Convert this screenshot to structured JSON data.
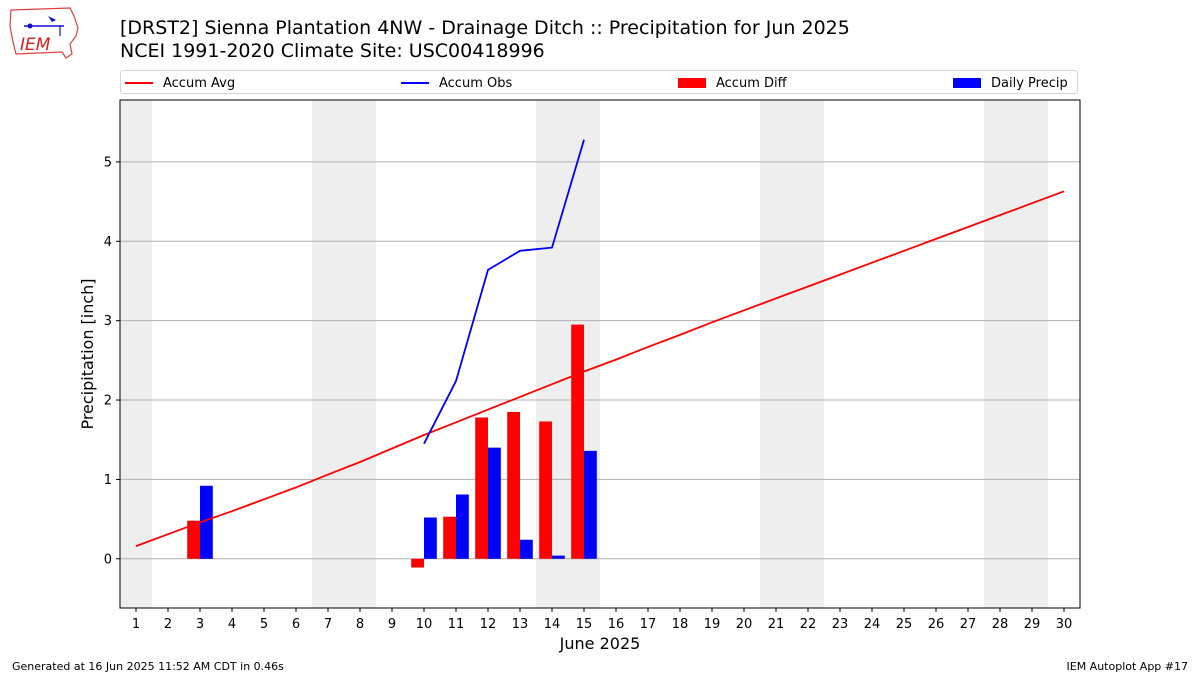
{
  "header": {
    "logo_text": "IEM",
    "title": "[DRST2] Sienna Plantation 4NW - Drainage Ditch :: Precipitation for Jun 2025",
    "subtitle": "NCEI 1991-2020 Climate Site: USC00418996"
  },
  "legend": {
    "placement": "top",
    "items": [
      {
        "label": "Accum Avg",
        "kind": "line",
        "color": "#ff0000"
      },
      {
        "label": "Accum Obs",
        "kind": "line",
        "color": "#0000ff"
      },
      {
        "label": "Accum Diff",
        "kind": "bar",
        "color": "#ff0000"
      },
      {
        "label": "Daily Precip",
        "kind": "bar",
        "color": "#0000ff"
      }
    ]
  },
  "chart_data": {
    "type": "bar",
    "xlabel": "June 2025",
    "ylabel": "Precipitation [inch]",
    "xlim": [
      0.5,
      30.5
    ],
    "ylim": [
      -0.62,
      5.78
    ],
    "x_ticks": [
      1,
      2,
      3,
      4,
      5,
      6,
      7,
      8,
      9,
      10,
      11,
      12,
      13,
      14,
      15,
      16,
      17,
      18,
      19,
      20,
      21,
      22,
      23,
      24,
      25,
      26,
      27,
      28,
      29,
      30
    ],
    "y_ticks": [
      0,
      1,
      2,
      3,
      4,
      5
    ],
    "grid": "horizontal",
    "weekend_shading": [
      [
        0.5,
        1.5
      ],
      [
        6.5,
        8.5
      ],
      [
        13.5,
        15.5
      ],
      [
        20.5,
        22.5
      ],
      [
        27.5,
        29.5
      ]
    ],
    "shade_color": "#eeeeee",
    "series": [
      {
        "name": "Accum Avg",
        "kind": "line",
        "color": "#ff0000",
        "x": [
          1,
          2,
          3,
          4,
          5,
          6,
          7,
          8,
          9,
          10,
          11,
          12,
          13,
          14,
          15,
          16,
          17,
          18,
          19,
          20,
          21,
          22,
          23,
          24,
          25,
          26,
          27,
          28,
          29,
          30
        ],
        "values": [
          0.16,
          0.31,
          0.46,
          0.6,
          0.75,
          0.9,
          1.06,
          1.22,
          1.39,
          1.56,
          1.72,
          1.88,
          2.04,
          2.2,
          2.36,
          2.51,
          2.67,
          2.82,
          2.98,
          3.13,
          3.28,
          3.43,
          3.58,
          3.73,
          3.88,
          4.03,
          4.18,
          4.33,
          4.48,
          4.63
        ]
      },
      {
        "name": "Accum Obs",
        "kind": "line",
        "color": "#0000ff",
        "x": [
          10,
          11,
          12,
          13,
          14,
          15
        ],
        "values": [
          1.45,
          2.24,
          3.64,
          3.88,
          3.92,
          5.28
        ]
      },
      {
        "name": "Accum Diff",
        "kind": "bar",
        "color": "#ff0000",
        "x": [
          3,
          10,
          11,
          12,
          13,
          14,
          15
        ],
        "values": [
          0.48,
          -0.11,
          0.53,
          1.78,
          1.85,
          1.73,
          2.95
        ]
      },
      {
        "name": "Daily Precip",
        "kind": "bar",
        "color": "#0000ff",
        "x": [
          3,
          10,
          11,
          12,
          13,
          14,
          15
        ],
        "values": [
          0.92,
          0.52,
          0.81,
          1.4,
          0.24,
          0.04,
          1.36
        ]
      }
    ]
  },
  "footer": {
    "generated": "Generated at 16 Jun 2025 11:52 AM CDT in 0.46s",
    "app": "IEM Autoplot App #17"
  }
}
